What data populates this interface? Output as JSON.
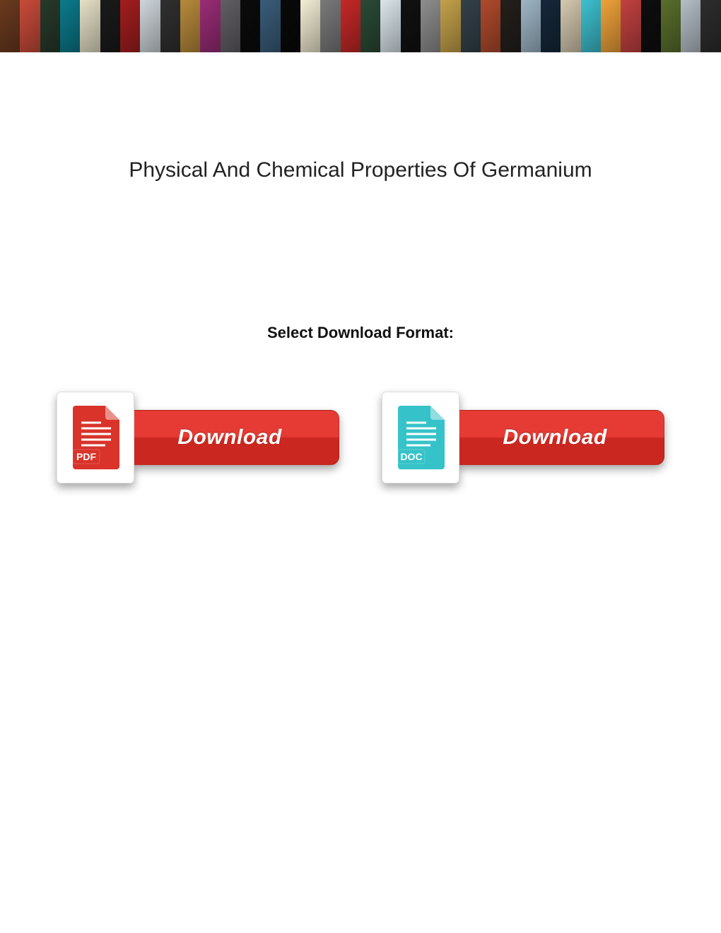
{
  "banner": {
    "tile_colors": [
      "#6b3a1f",
      "#c94b3a",
      "#273a2a",
      "#0b7a8b",
      "#e6e0c7",
      "#1a1a1a",
      "#a31e1e",
      "#cfd6db",
      "#303030",
      "#b78a3b",
      "#9a2c77",
      "#605e63",
      "#0b0b0b",
      "#3a5d7a",
      "#090909",
      "#f3edd4",
      "#7a7a7a",
      "#c62828",
      "#2b4a36",
      "#dbe6ec",
      "#111111",
      "#8e8e8e",
      "#c4a24a",
      "#34414a",
      "#b04a2c",
      "#241f1b",
      "#9fb6c7",
      "#15273a",
      "#d4c9b0",
      "#3dc0cf",
      "#efa23a",
      "#c34141",
      "#0e0e0e",
      "#5a6e2b",
      "#b5bec6",
      "#2d2d2d"
    ]
  },
  "title": "Physical And Chemical Properties Of Germanium",
  "select_label": "Select Download Format:",
  "buttons": [
    {
      "type": "PDF",
      "label": "Download",
      "icon_fill": "#d9332a",
      "icon_text": "PDF",
      "pill_top": "#e53b34",
      "pill_bottom": "#c9271f"
    },
    {
      "type": "DOC",
      "label": "Download",
      "icon_fill": "#35c3c9",
      "icon_text": "DOC",
      "pill_top": "#e53b34",
      "pill_bottom": "#c9271f"
    }
  ]
}
